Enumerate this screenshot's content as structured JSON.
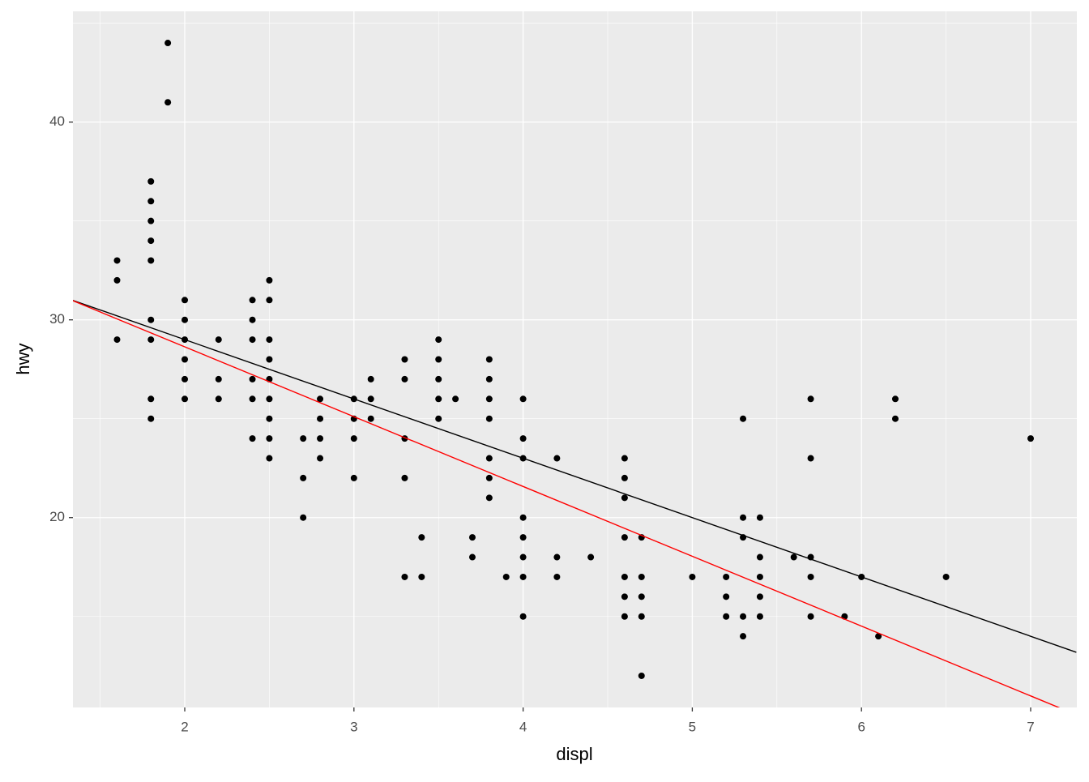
{
  "chart_data": {
    "type": "scatter",
    "x_label": "displ",
    "y_label": "hwy",
    "point_color": "#000000",
    "x": [
      1.6,
      1.6,
      1.6,
      1.8,
      1.8,
      1.8,
      1.8,
      1.8,
      1.8,
      1.8,
      1.8,
      1.8,
      1.9,
      1.9,
      2.0,
      2.0,
      2.0,
      2.0,
      2.0,
      2.0,
      2.2,
      2.2,
      2.2,
      2.4,
      2.4,
      2.4,
      2.4,
      2.4,
      2.4,
      2.5,
      2.5,
      2.5,
      2.5,
      2.5,
      2.5,
      2.5,
      2.5,
      2.5,
      2.7,
      2.7,
      2.7,
      2.8,
      2.8,
      2.8,
      2.8,
      3.0,
      3.0,
      3.0,
      3.0,
      3.1,
      3.1,
      3.1,
      3.3,
      3.3,
      3.3,
      3.3,
      3.3,
      3.4,
      3.4,
      3.5,
      3.5,
      3.5,
      3.5,
      3.5,
      3.6,
      3.7,
      3.7,
      3.8,
      3.8,
      3.8,
      3.8,
      3.8,
      3.8,
      3.8,
      3.9,
      4.0,
      4.0,
      4.0,
      4.0,
      4.0,
      4.0,
      4.0,
      4.0,
      4.2,
      4.2,
      4.2,
      4.4,
      4.6,
      4.6,
      4.6,
      4.6,
      4.6,
      4.6,
      4.6,
      4.7,
      4.7,
      4.7,
      4.7,
      4.7,
      5.0,
      5.2,
      5.2,
      5.2,
      5.3,
      5.3,
      5.3,
      5.3,
      5.3,
      5.4,
      5.4,
      5.4,
      5.4,
      5.4,
      5.6,
      5.7,
      5.7,
      5.7,
      5.7,
      5.7,
      5.9,
      6.0,
      6.1,
      6.2,
      6.2,
      6.5,
      7.0
    ],
    "y": [
      33,
      32,
      29,
      37,
      36,
      35,
      34,
      33,
      30,
      29,
      26,
      25,
      44,
      41,
      31,
      30,
      29,
      28,
      27,
      26,
      29,
      27,
      26,
      31,
      30,
      29,
      27,
      26,
      24,
      32,
      31,
      29,
      28,
      27,
      26,
      25,
      24,
      23,
      24,
      22,
      20,
      26,
      25,
      24,
      23,
      26,
      25,
      24,
      22,
      27,
      26,
      25,
      28,
      27,
      24,
      22,
      17,
      19,
      17,
      29,
      28,
      27,
      26,
      25,
      26,
      19,
      18,
      28,
      27,
      26,
      25,
      23,
      22,
      21,
      17,
      26,
      24,
      23,
      20,
      19,
      18,
      17,
      15,
      23,
      18,
      17,
      18,
      23,
      22,
      21,
      19,
      17,
      16,
      15,
      19,
      17,
      16,
      15,
      12,
      17,
      17,
      16,
      15,
      25,
      20,
      19,
      15,
      14,
      20,
      18,
      17,
      16,
      15,
      18,
      26,
      23,
      18,
      17,
      15,
      15,
      17,
      14,
      26,
      25,
      17,
      24
    ],
    "lines": [
      {
        "color": "#000000",
        "x": [
          1.33,
          7.27
        ],
        "y": [
          31.01,
          13.19
        ]
      },
      {
        "color": "#ff0000",
        "x": [
          1.33,
          7.27
        ],
        "y": [
          31.0,
          10.03
        ]
      }
    ],
    "xlim": [
      1.339,
      7.273
    ],
    "ylim": [
      10.4,
      45.6
    ],
    "xticks": [
      2,
      3,
      4,
      5,
      6,
      7
    ],
    "yticks": [
      20,
      30,
      40
    ],
    "xminor": [
      1.5,
      2.5,
      3.5,
      4.5,
      5.5,
      6.5
    ],
    "yminor": [
      15,
      25,
      35,
      45
    ],
    "grid": true
  }
}
